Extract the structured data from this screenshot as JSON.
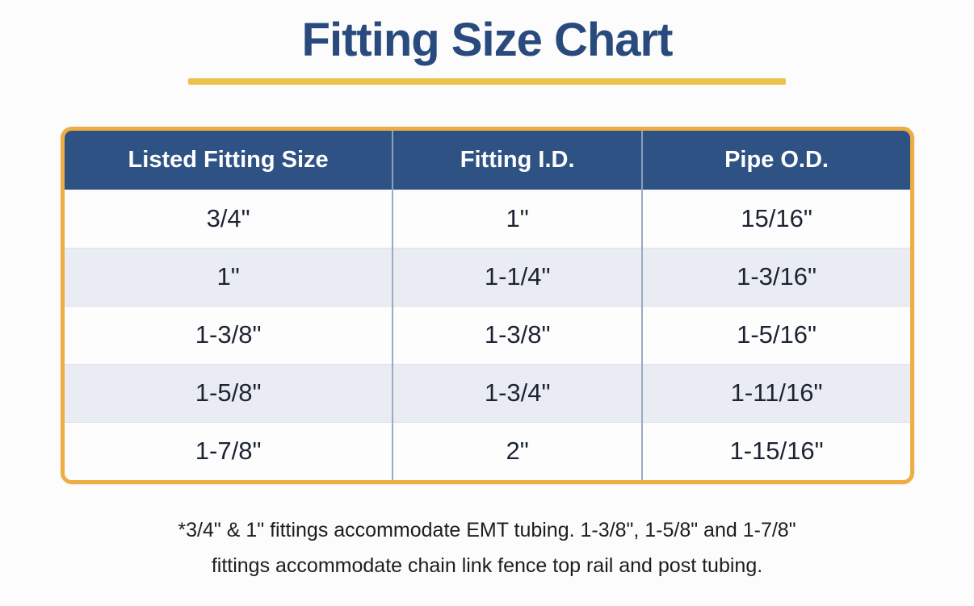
{
  "page": {
    "title": "Fitting Size Chart"
  },
  "chart_data": {
    "type": "table",
    "title": "Fitting Size Chart",
    "columns": [
      "Listed Fitting Size",
      "Fitting I.D.",
      "Pipe O.D."
    ],
    "rows": [
      [
        "3/4\"",
        "1\"",
        "15/16\""
      ],
      [
        "1\"",
        "1-1/4\"",
        "1-3/16\""
      ],
      [
        "1-3/8\"",
        "1-3/8\"",
        "1-5/16\""
      ],
      [
        "1-5/8\"",
        "1-3/4\"",
        "1-11/16\""
      ],
      [
        "1-7/8\"",
        "2\"",
        "1-15/16\""
      ]
    ],
    "layout": {
      "header_style": "solid blue band with white bold text",
      "row_striping": "white / light blue-gray alternating",
      "border": "rounded gold frame around table"
    }
  },
  "footnote": {
    "line1": "*3/4\" & 1\" fittings accommodate EMT tubing.  1-3/8\", 1-5/8\" and 1-7/8\"",
    "line2": "fittings accommodate chain link fence top rail and post tubing."
  },
  "colors": {
    "title_navy": "#294a7d",
    "underline_gold": "#eec14d",
    "frame_gold": "#efac41",
    "header_blue": "#2f5285",
    "header_text": "#ffffff",
    "row_alt_stripe": "#e9ecf2",
    "column_divider": "#9aabc2",
    "cell_text": "#1c2433",
    "page_background": "#fcfcfc"
  }
}
